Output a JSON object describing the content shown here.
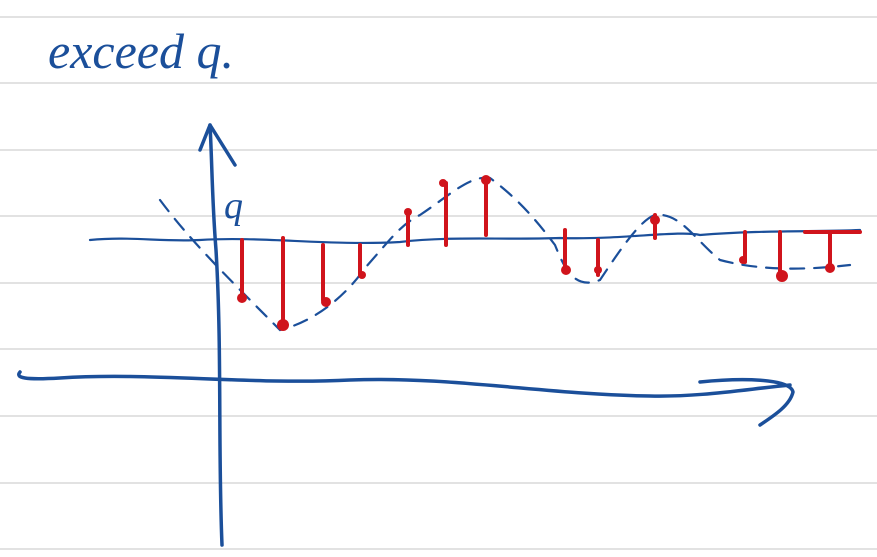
{
  "title": "exceed q.",
  "label": "q"
}
